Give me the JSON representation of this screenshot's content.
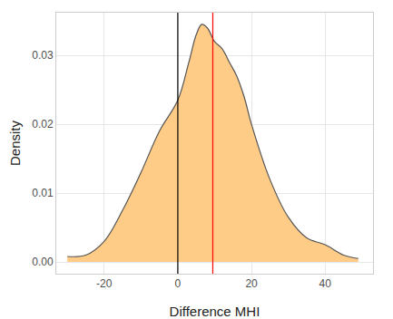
{
  "chart_data": {
    "type": "area",
    "x_label": "Difference MHI",
    "y_label": "Density",
    "x": [
      -30,
      -25,
      -20,
      -15,
      -10,
      -5,
      0,
      3,
      5,
      6.5,
      8,
      10,
      12,
      14,
      16,
      18,
      20,
      25,
      30,
      35,
      40,
      45,
      49
    ],
    "values": [
      0.0008,
      0.001,
      0.003,
      0.0075,
      0.013,
      0.019,
      0.0235,
      0.029,
      0.033,
      0.0345,
      0.034,
      0.032,
      0.031,
      0.029,
      0.027,
      0.024,
      0.02,
      0.012,
      0.0065,
      0.0035,
      0.0025,
      0.001,
      0.0005
    ],
    "color": "#ffcc88",
    "xlim": [
      -33,
      53
    ],
    "xticks": [
      -20,
      0,
      20,
      40
    ],
    "ylim": [
      -0.0017,
      0.0362
    ],
    "yticks": [
      {
        "value": 0,
        "label": "0.00"
      },
      0.01,
      0.02,
      0.03
    ],
    "vlines": [
      {
        "x": 0,
        "color": "#000000"
      },
      {
        "x": 9.5,
        "color": "#ff0000"
      }
    ],
    "grid": true
  }
}
